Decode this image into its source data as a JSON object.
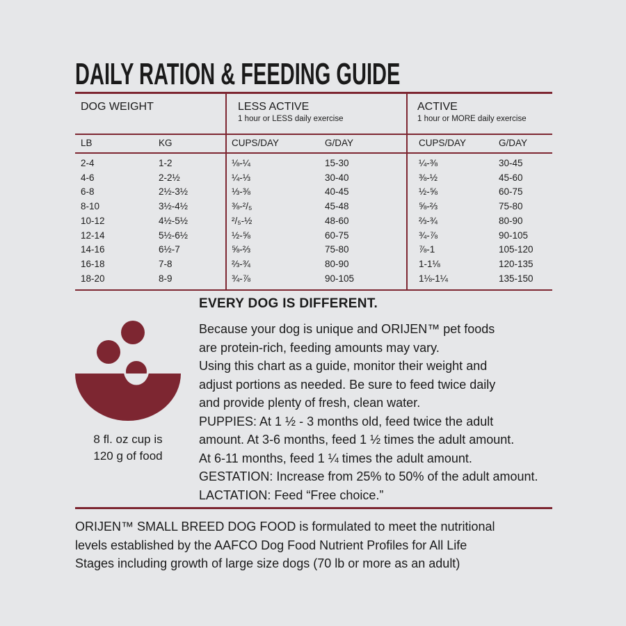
{
  "title": "DAILY RATION & FEEDING GUIDE",
  "colors": {
    "accent": "#7d2631",
    "background": "#e6e7e9"
  },
  "table": {
    "groups": [
      {
        "label": "DOG WEIGHT",
        "sub": ""
      },
      {
        "label": "LESS ACTIVE",
        "sub": "1 hour or LESS daily exercise"
      },
      {
        "label": "ACTIVE",
        "sub": "1 hour or MORE daily exercise"
      }
    ],
    "columns": [
      "LB",
      "KG",
      "CUPS/DAY",
      "G/DAY",
      "CUPS/DAY",
      "G/DAY"
    ],
    "rows": [
      [
        "2-4",
        "1-2",
        "⅛-¼",
        "15-30",
        "¼-⅜",
        "30-45"
      ],
      [
        "4-6",
        "2-2½",
        "¼-⅓",
        "30-40",
        "⅜-½",
        "45-60"
      ],
      [
        "6-8",
        "2½-3½",
        "⅓-⅜",
        "40-45",
        "½-⅝",
        "60-75"
      ],
      [
        "8-10",
        "3½-4½",
        "⅜-²/₅",
        "45-48",
        "⅝-⅔",
        "75-80"
      ],
      [
        "10-12",
        "4½-5½",
        "²/₅-½",
        "48-60",
        "⅔-¾",
        "80-90"
      ],
      [
        "12-14",
        "5½-6½",
        "½-⅝",
        "60-75",
        "¾-⅞",
        "90-105"
      ],
      [
        "14-16",
        "6½-7",
        "⅝-⅔",
        "75-80",
        "⅞-1",
        "105-120"
      ],
      [
        "16-18",
        "7-8",
        "⅔-¾",
        "80-90",
        "1-1⅛",
        "120-135"
      ],
      [
        "18-20",
        "8-9",
        "¾-⅞",
        "90-105",
        "1⅛-1¼",
        "135-150"
      ]
    ]
  },
  "cup": {
    "icon": "food-bowl-icon",
    "caption_lines": [
      "8 fl. oz cup is",
      "120 g of food"
    ]
  },
  "note": {
    "heading": "EVERY DOG IS DIFFERENT.",
    "lines": [
      "Because your dog is unique and ORIJEN™ pet foods",
      "are protein-rich, feeding amounts may vary.",
      "Using this chart as a guide, monitor their weight and",
      "adjust portions as needed. Be sure to feed twice daily",
      "and provide plenty of fresh, clean water.",
      "PUPPIES: At 1 ½ - 3 months old, feed twice the adult",
      "amount. At 3-6 months, feed 1 ½ times the adult amount.",
      "At 6-11 months, feed 1 ¼ times the adult amount.",
      "GESTATION: Increase from 25% to 50% of the adult amount.",
      "LACTATION: Feed “Free choice.”"
    ]
  },
  "footer": {
    "lines": [
      "ORIJEN™ SMALL BREED DOG FOOD is formulated to meet the nutritional",
      "levels established by the AAFCO Dog Food Nutrient Profiles for All Life",
      "Stages including growth of large size dogs (70 lb or more as an adult)"
    ]
  }
}
